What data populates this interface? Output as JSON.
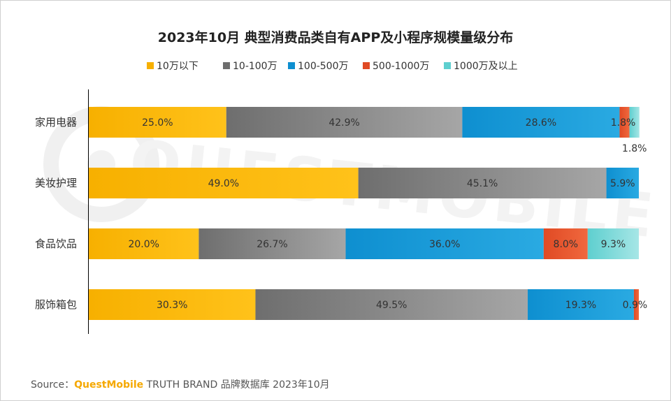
{
  "chart_data": {
    "type": "bar",
    "orientation": "horizontal",
    "stacked": true,
    "title": "2023年10月 典型消费品类自有APP及小程序规模量级分布",
    "xlabel": "",
    "ylabel": "",
    "xlim": [
      0,
      100
    ],
    "grid": false,
    "legend_position": "top",
    "categories": [
      "家用电器",
      "美妆护理",
      "食品饮品",
      "服饰箱包"
    ],
    "series": [
      {
        "name": "10万以下",
        "color": "#f7b000",
        "color_light": "#ffc21a",
        "values": [
          25.0,
          49.0,
          20.0,
          30.3
        ]
      },
      {
        "name": "10-100万",
        "color": "#6e6e6e",
        "color_light": "#a6a6a6",
        "values": [
          42.9,
          45.1,
          26.7,
          49.5
        ]
      },
      {
        "name": "100-500万",
        "color": "#0e8fd0",
        "color_light": "#2aaae2",
        "values": [
          28.6,
          5.9,
          36.0,
          19.3
        ]
      },
      {
        "name": "500-1000万",
        "color": "#e04a24",
        "color_light": "#f0683e",
        "values": [
          1.8,
          0.0,
          8.0,
          0.9
        ]
      },
      {
        "name": "1000万及以上",
        "color": "#5ecfcf",
        "color_light": "#a6e6e6",
        "values": [
          1.8,
          0.0,
          9.3,
          0.0
        ]
      }
    ],
    "data_labels": [
      [
        "25.0%",
        "42.9%",
        "28.6%",
        "1.8%",
        "1.8%"
      ],
      [
        "49.0%",
        "45.1%",
        "5.9%",
        "",
        ""
      ],
      [
        "20.0%",
        "26.7%",
        "36.0%",
        "8.0%",
        "9.3%"
      ],
      [
        "30.3%",
        "49.5%",
        "19.3%",
        "0.9%",
        ""
      ]
    ]
  },
  "watermark": "QUESTMOBILE",
  "source": {
    "prefix": "Source：",
    "brand": "QuestMobile",
    "rest": " TRUTH BRAND 品牌数据库 2023年10月"
  }
}
